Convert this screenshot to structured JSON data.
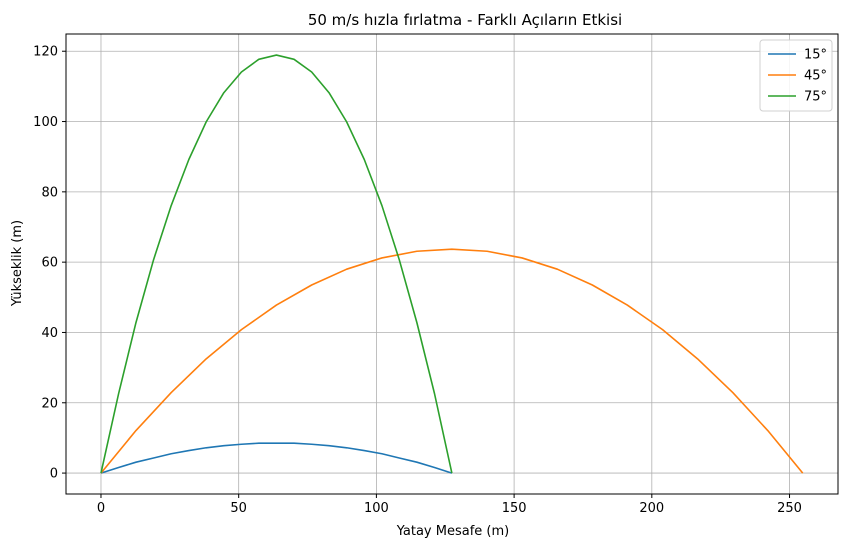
{
  "chart_data": {
    "type": "line",
    "title": "50 m/s hızla fırlatma - Farklı Açıların Etkisi",
    "xlabel": "Yatay Mesafe (m)",
    "ylabel": "Yükseklik (m)",
    "xlim": [
      -12.7,
      267.6
    ],
    "ylim": [
      -5.95,
      124.9
    ],
    "xticks": [
      0,
      50,
      100,
      150,
      200,
      250
    ],
    "yticks": [
      0,
      20,
      40,
      60,
      80,
      100,
      120
    ],
    "grid": true,
    "legend_position": "top-right",
    "series": [
      {
        "name": "15°",
        "color": "#1f77b4",
        "points": [
          [
            0,
            0
          ],
          [
            6.4,
            1.6
          ],
          [
            12.7,
            3.1
          ],
          [
            19.1,
            4.3
          ],
          [
            25.5,
            5.5
          ],
          [
            31.9,
            6.4
          ],
          [
            38.2,
            7.2
          ],
          [
            44.6,
            7.8
          ],
          [
            51,
            8.2
          ],
          [
            57.3,
            8.5
          ],
          [
            63.7,
            8.5
          ],
          [
            70.1,
            8.5
          ],
          [
            76.5,
            8.2
          ],
          [
            82.8,
            7.8
          ],
          [
            89.2,
            7.2
          ],
          [
            95.6,
            6.4
          ],
          [
            102,
            5.5
          ],
          [
            108.3,
            4.3
          ],
          [
            114.7,
            3.1
          ],
          [
            121.1,
            1.6
          ],
          [
            127.4,
            0
          ]
        ]
      },
      {
        "name": "45°",
        "color": "#ff7f0e",
        "points": [
          [
            0,
            0
          ],
          [
            12.7,
            12.1
          ],
          [
            25.5,
            22.9
          ],
          [
            38.2,
            32.5
          ],
          [
            51,
            40.8
          ],
          [
            63.7,
            47.8
          ],
          [
            76.5,
            53.5
          ],
          [
            89.2,
            58
          ],
          [
            102,
            61.2
          ],
          [
            114.7,
            63.1
          ],
          [
            127.4,
            63.7
          ],
          [
            140.2,
            63.1
          ],
          [
            152.9,
            61.2
          ],
          [
            165.7,
            58
          ],
          [
            178.4,
            53.5
          ],
          [
            191.1,
            47.8
          ],
          [
            203.9,
            40.8
          ],
          [
            216.6,
            32.5
          ],
          [
            229.4,
            22.9
          ],
          [
            242.1,
            12.1
          ],
          [
            254.8,
            0
          ]
        ]
      },
      {
        "name": "75°",
        "color": "#2ca02c",
        "points": [
          [
            0,
            0
          ],
          [
            6.4,
            22.6
          ],
          [
            12.7,
            42.8
          ],
          [
            19.1,
            60.7
          ],
          [
            25.5,
            76.1
          ],
          [
            31.9,
            89.2
          ],
          [
            38.2,
            99.9
          ],
          [
            44.6,
            108.2
          ],
          [
            51,
            114.1
          ],
          [
            57.3,
            117.7
          ],
          [
            63.7,
            118.9
          ],
          [
            70.1,
            117.7
          ],
          [
            76.5,
            114.1
          ],
          [
            82.8,
            108.2
          ],
          [
            89.2,
            99.9
          ],
          [
            95.6,
            89.2
          ],
          [
            102,
            76.1
          ],
          [
            108.3,
            60.7
          ],
          [
            114.7,
            42.8
          ],
          [
            121.1,
            22.6
          ],
          [
            127.4,
            0
          ]
        ]
      }
    ]
  }
}
